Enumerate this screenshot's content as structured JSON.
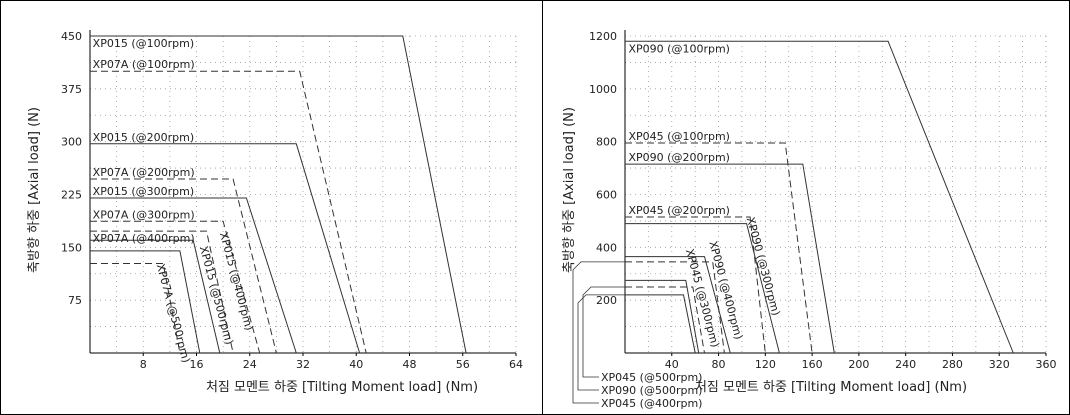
{
  "chart_data": [
    {
      "type": "line",
      "xlabel": "처짐 모멘트 하중 [Tilting Moment load] (Nm)",
      "ylabel": "축방향 하중 [Axial load] (N)",
      "xlim": [
        0,
        64
      ],
      "ylim": [
        0,
        450
      ],
      "xticks": [
        "8",
        "16",
        "24",
        "32",
        "40",
        "48",
        "56",
        "64"
      ],
      "yticks": [
        "75",
        "150",
        "225",
        "300",
        "375",
        "450"
      ],
      "grid": "dotted",
      "series": [
        {
          "name": "XP015 (@100rpm)",
          "style": "solid",
          "points": [
            [
              0,
              450
            ],
            [
              47,
              450
            ],
            [
              56.5,
              0
            ]
          ]
        },
        {
          "name": "XP07A (@100rpm)",
          "style": "dashed",
          "points": [
            [
              0,
              400
            ],
            [
              31.5,
              400
            ],
            [
              41.5,
              0
            ]
          ]
        },
        {
          "name": "XP015 (@200rpm)",
          "style": "solid",
          "points": [
            [
              0,
              297
            ],
            [
              31,
              297
            ],
            [
              40.5,
              0
            ]
          ]
        },
        {
          "name": "XP07A (@200rpm)",
          "style": "dashed",
          "points": [
            [
              0,
              247
            ],
            [
              21.5,
              247
            ],
            [
              28,
              0
            ]
          ]
        },
        {
          "name": "XP015 (@300rpm)",
          "style": "solid",
          "points": [
            [
              0,
              220
            ],
            [
              23.5,
              220
            ],
            [
              31,
              0
            ]
          ]
        },
        {
          "name": "XP07A (@300rpm)",
          "style": "dashed",
          "points": [
            [
              0,
              187
            ],
            [
              20,
              187
            ],
            [
              25.5,
              0
            ]
          ]
        },
        {
          "name": "XP07A (@400rpm)",
          "style": "dashed",
          "points": [
            [
              0,
              173
            ],
            [
              17.5,
              173
            ],
            [
              21.5,
              0
            ]
          ]
        },
        {
          "name": "XP015 (@400rpm)",
          "style": "solid",
          "points": [
            [
              0,
              160
            ],
            [
              15.5,
              160
            ],
            [
              19.5,
              0
            ]
          ]
        },
        {
          "name": "XP015 (@500rpm)",
          "style": "solid",
          "points": [
            [
              0,
              145
            ],
            [
              13.5,
              145
            ],
            [
              16.5,
              0
            ]
          ]
        },
        {
          "name": "XP07A (@500rpm)",
          "style": "dashed",
          "points": [
            [
              0,
              127
            ],
            [
              11,
              127
            ],
            [
              13.5,
              0
            ]
          ]
        }
      ],
      "line_labels": [
        {
          "text": "XP015 (@100rpm)",
          "x": 0.4,
          "y": 450,
          "align": "below",
          "rotate": false
        },
        {
          "text": "XP07A (@100rpm)",
          "x": 0.4,
          "y": 400,
          "align": "above",
          "rotate": false
        },
        {
          "text": "XP015 (@200rpm)",
          "x": 0.4,
          "y": 297,
          "align": "above",
          "rotate": false
        },
        {
          "text": "XP07A (@200rpm)",
          "x": 0.4,
          "y": 247,
          "align": "above",
          "rotate": false
        },
        {
          "text": "XP015 (@300rpm)",
          "x": 0.4,
          "y": 220,
          "align": "above",
          "rotate": false
        },
        {
          "text": "XP07A (@300rpm)",
          "x": 0.4,
          "y": 187,
          "align": "above",
          "rotate": false
        },
        {
          "text": "XP07A (@400rpm)",
          "x": 0.4,
          "y": 173,
          "align": "below",
          "rotate": false
        },
        {
          "text": "XP015 (@400rpm)",
          "x": 19.5,
          "y": 170,
          "align": "above",
          "rotate": true
        },
        {
          "text": "XP015 (@500rpm)",
          "x": 16.5,
          "y": 150,
          "align": "above",
          "rotate": true
        },
        {
          "text": "XP07A (@500rpm)",
          "x": 10,
          "y": 125,
          "align": "above",
          "rotate": true
        }
      ]
    },
    {
      "type": "line",
      "xlabel": "처짐 모멘트 하중 [Tilting Moment load] (Nm)",
      "ylabel": "축방향 하중 [Axial load] (N)",
      "xlim": [
        0,
        360
      ],
      "ylim": [
        0,
        1200
      ],
      "xticks": [
        "40",
        "80",
        "120",
        "160",
        "200",
        "240",
        "280",
        "320",
        "360"
      ],
      "yticks": [
        "200",
        "400",
        "600",
        "800",
        "1000",
        "1200"
      ],
      "grid": "dotted",
      "series": [
        {
          "name": "XP090 (@100rpm)",
          "style": "solid",
          "points": [
            [
              0,
              1180
            ],
            [
              225,
              1180
            ],
            [
              332,
              0
            ]
          ]
        },
        {
          "name": "XP045 (@100rpm)",
          "style": "dashed",
          "points": [
            [
              0,
              795
            ],
            [
              137,
              795
            ],
            [
              160,
              0
            ]
          ]
        },
        {
          "name": "XP090 (@200rpm)",
          "style": "solid",
          "points": [
            [
              0,
              715
            ],
            [
              152,
              715
            ],
            [
              179,
              0
            ]
          ]
        },
        {
          "name": "XP045 (@200rpm)",
          "style": "dashed",
          "points": [
            [
              0,
              515
            ],
            [
              107,
              515
            ],
            [
              120,
              0
            ]
          ]
        },
        {
          "name": "XP090 (@300rpm)",
          "style": "solid",
          "points": [
            [
              0,
              490
            ],
            [
              104,
              490
            ],
            [
              132,
              0
            ]
          ]
        },
        {
          "name": "XP045 (@400rpm)",
          "style": "dashed",
          "points": [
            [
              0,
              345
            ],
            [
              75,
              345
            ],
            [
              85,
              0
            ]
          ]
        },
        {
          "name": "XP090 (@400rpm)",
          "style": "solid",
          "points": [
            [
              0,
              365
            ],
            [
              68,
              365
            ],
            [
              90,
              0
            ]
          ]
        },
        {
          "name": "XP045 (@300rpm)",
          "style": "solid",
          "points": [
            [
              0,
              275
            ],
            [
              52,
              275
            ],
            [
              63,
              0
            ]
          ]
        },
        {
          "name": "XP045 (@500rpm)",
          "style": "dashed",
          "points": [
            [
              0,
              250
            ],
            [
              58,
              250
            ],
            [
              68,
              0
            ]
          ]
        },
        {
          "name": "XP090 (@500rpm)",
          "style": "solid",
          "points": [
            [
              0,
              220
            ],
            [
              50,
              220
            ],
            [
              60,
              0
            ]
          ]
        }
      ],
      "line_labels": [
        {
          "text": "XP090 (@100rpm)",
          "x": 3,
          "y": 1180,
          "align": "below",
          "rotate": false
        },
        {
          "text": "XP045 (@100rpm)",
          "x": 3,
          "y": 795,
          "align": "above",
          "rotate": false
        },
        {
          "text": "XP090 (@200rpm)",
          "x": 3,
          "y": 715,
          "align": "above",
          "rotate": false
        },
        {
          "text": "XP045 (@200rpm)",
          "x": 3,
          "y": 515,
          "align": "above",
          "rotate": false
        },
        {
          "text": "XP090 (@300rpm)",
          "x": 104,
          "y": 510,
          "align": "above",
          "rotate": true
        },
        {
          "text": "XP090 (@400rpm)",
          "x": 72,
          "y": 420,
          "align": "above",
          "rotate": true
        },
        {
          "text": "XP045 (@300rpm)",
          "x": 52,
          "y": 390,
          "align": "above",
          "rotate": true
        }
      ],
      "callouts": [
        {
          "text": "XP045 (@500rpm)",
          "y": 250
        },
        {
          "text": "XP090 (@500rpm)",
          "y": 220
        },
        {
          "text": "XP045 (@400rpm)",
          "y": 345
        }
      ]
    }
  ]
}
